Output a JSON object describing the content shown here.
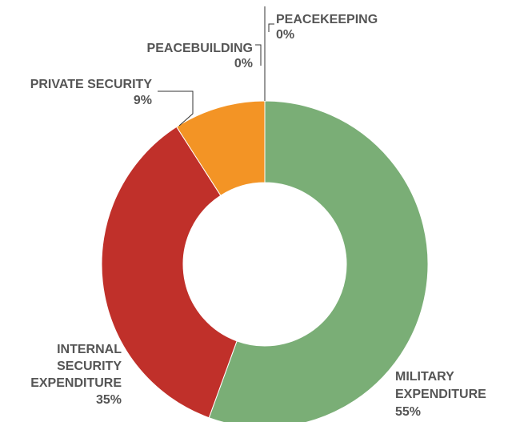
{
  "chart_data": {
    "type": "pie",
    "variant": "donut",
    "slices": [
      {
        "label": "MILITARY EXPENDITURE",
        "value": 55,
        "value_label": "55%",
        "color": "#7aae76"
      },
      {
        "label": "INTERNAL SECURITY EXPENDITURE",
        "value": 35,
        "value_label": "35%",
        "color": "#c0302a"
      },
      {
        "label": "PRIVATE SECURITY",
        "value": 9,
        "value_label": "9%",
        "color": "#f39425"
      },
      {
        "label": "PEACEBUILDING",
        "value": 0,
        "value_label": "0%",
        "color": "#f39425"
      },
      {
        "label": "PEACEKEEPING",
        "value": 0,
        "value_label": "0%",
        "color": "#7aae76"
      }
    ],
    "legend": "none"
  }
}
